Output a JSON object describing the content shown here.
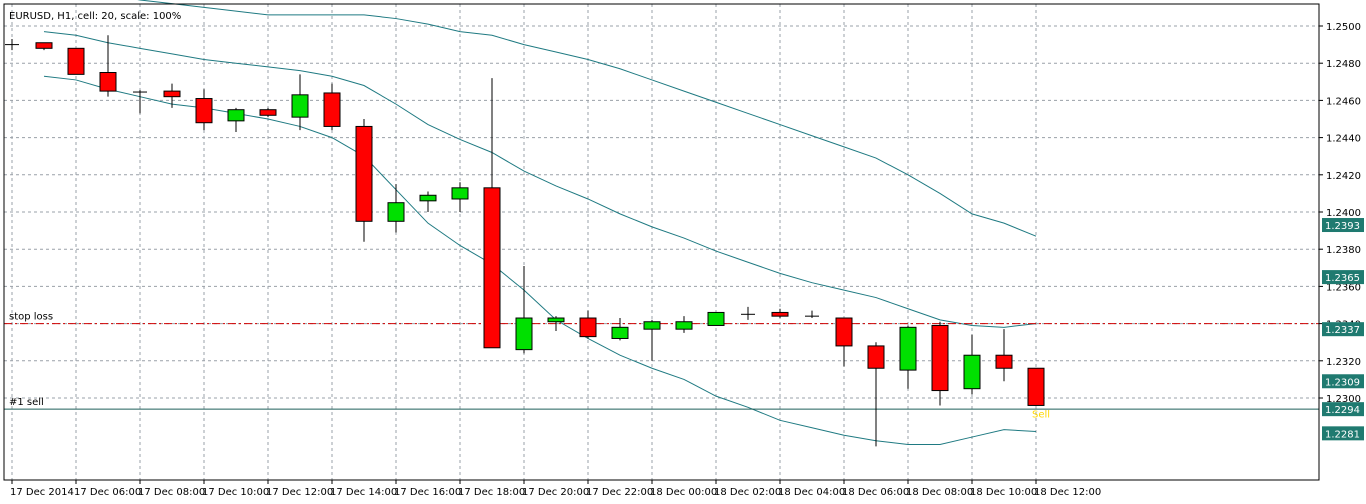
{
  "header": {
    "title": "EURUSD, H1, cell: 20, scale: 100%"
  },
  "colors": {
    "grid": "#9aa0a8",
    "frame": "#000000",
    "bull": "#00e000",
    "bear": "#ff0000",
    "band": "#1f7a82",
    "stop_line": "#d00000",
    "sell_line": "#1f5f5a",
    "price_bg": "#1f7a70",
    "marker": "#ffd700"
  },
  "chart_data": {
    "type": "candlestick",
    "symbol": "EURUSD",
    "timeframe": "H1",
    "ylim": [
      1.2266,
      1.2512
    ],
    "y_ticks": [
      "1.2500",
      "1.2480",
      "1.2460",
      "1.2440",
      "1.2420",
      "1.2400",
      "1.2380",
      "1.2360",
      "1.2340",
      "1.2320",
      "1.2300"
    ],
    "x_labels": [
      "17 Dec 2014",
      "17 Dec 06:00",
      "17 Dec 08:00",
      "17 Dec 10:00",
      "17 Dec 12:00",
      "17 Dec 14:00",
      "17 Dec 16:00",
      "17 Dec 18:00",
      "17 Dec 20:00",
      "17 Dec 22:00",
      "18 Dec 00:00",
      "18 Dec 02:00",
      "18 Dec 04:00",
      "18 Dec 06:00",
      "18 Dec 08:00",
      "18 Dec 10:00",
      "18 Dec 12:00"
    ],
    "candles": [
      {
        "o": 1.249,
        "h": 1.2493,
        "l": 1.2487,
        "c": 1.249
      },
      {
        "o": 1.2491,
        "h": 1.2491,
        "l": 1.2487,
        "c": 1.2488
      },
      {
        "o": 1.2488,
        "h": 1.2488,
        "l": 1.2474,
        "c": 1.2474
      },
      {
        "o": 1.2475,
        "h": 1.2495,
        "l": 1.2462,
        "c": 1.2465
      },
      {
        "o": 1.24645,
        "h": 1.24655,
        "l": 1.2453,
        "c": 1.24645
      },
      {
        "o": 1.2465,
        "h": 1.2469,
        "l": 1.2456,
        "c": 1.2462
      },
      {
        "o": 1.2461,
        "h": 1.2466,
        "l": 1.2444,
        "c": 1.2448
      },
      {
        "o": 1.2449,
        "h": 1.2456,
        "l": 1.2443,
        "c": 1.2455
      },
      {
        "o": 1.2455,
        "h": 1.2456,
        "l": 1.2451,
        "c": 1.2452
      },
      {
        "o": 1.2451,
        "h": 1.2474,
        "l": 1.2444,
        "c": 1.2463
      },
      {
        "o": 1.2464,
        "h": 1.2469,
        "l": 1.2444,
        "c": 1.2446
      },
      {
        "o": 1.2446,
        "h": 1.245,
        "l": 1.2384,
        "c": 1.2395
      },
      {
        "o": 1.2395,
        "h": 1.2415,
        "l": 1.2389,
        "c": 1.2405
      },
      {
        "o": 1.2406,
        "h": 1.2411,
        "l": 1.24,
        "c": 1.2409
      },
      {
        "o": 1.2407,
        "h": 1.2416,
        "l": 1.24,
        "c": 1.2413
      },
      {
        "o": 1.2413,
        "h": 1.2472,
        "l": 1.2327,
        "c": 1.2327
      },
      {
        "o": 1.2326,
        "h": 1.2371,
        "l": 1.2324,
        "c": 1.2343
      },
      {
        "o": 1.2341,
        "h": 1.2344,
        "l": 1.2336,
        "c": 1.2343
      },
      {
        "o": 1.2343,
        "h": 1.2347,
        "l": 1.2332,
        "c": 1.2333
      },
      {
        "o": 1.2332,
        "h": 1.2343,
        "l": 1.2331,
        "c": 1.2338
      },
      {
        "o": 1.2337,
        "h": 1.2342,
        "l": 1.232,
        "c": 1.2341
      },
      {
        "o": 1.2337,
        "h": 1.2344,
        "l": 1.2335,
        "c": 1.2341
      },
      {
        "o": 1.2339,
        "h": 1.2346,
        "l": 1.2339,
        "c": 1.2346
      },
      {
        "o": 1.2345,
        "h": 1.2349,
        "l": 1.2342,
        "c": 1.2345
      },
      {
        "o": 1.2346,
        "h": 1.2348,
        "l": 1.2343,
        "c": 1.2344
      },
      {
        "o": 1.2344,
        "h": 1.2347,
        "l": 1.2343,
        "c": 1.2344
      },
      {
        "o": 1.2343,
        "h": 1.2343,
        "l": 1.2317,
        "c": 1.2328
      },
      {
        "o": 1.2328,
        "h": 1.233,
        "l": 1.2274,
        "c": 1.2316
      },
      {
        "o": 1.2315,
        "h": 1.2339,
        "l": 1.2305,
        "c": 1.2338
      },
      {
        "o": 1.2339,
        "h": 1.2341,
        "l": 1.2296,
        "c": 1.2304
      },
      {
        "o": 1.2305,
        "h": 1.2334,
        "l": 1.2302,
        "c": 1.2323
      },
      {
        "o": 1.2323,
        "h": 1.2337,
        "l": 1.2309,
        "c": 1.2316
      },
      {
        "o": 1.2316,
        "h": 1.2316,
        "l": 1.2296,
        "c": 1.2296
      }
    ],
    "bands": {
      "upper": [
        1.2521,
        1.2519,
        1.2517,
        1.2514,
        1.2512,
        1.251,
        1.2508,
        1.2506,
        1.2506,
        1.2506,
        1.2506,
        1.2504,
        1.2501,
        1.2497,
        1.2495,
        1.249,
        1.2486,
        1.2482,
        1.2477,
        1.2471,
        1.2465,
        1.2459,
        1.2453,
        1.2447,
        1.2441,
        1.2435,
        1.2429,
        1.242,
        1.241,
        1.2399,
        1.2394,
        1.2387
      ],
      "middle": [
        1.2497,
        1.2495,
        1.2491,
        1.2488,
        1.2485,
        1.2482,
        1.248,
        1.2478,
        1.2476,
        1.2473,
        1.2468,
        1.2458,
        1.2447,
        1.2439,
        1.2432,
        1.2422,
        1.2414,
        1.2407,
        1.2399,
        1.2392,
        1.2386,
        1.2379,
        1.2373,
        1.2367,
        1.2362,
        1.2358,
        1.2354,
        1.2348,
        1.2342,
        1.2339,
        1.2338,
        1.234
      ],
      "lower": [
        1.2473,
        1.2471,
        1.2466,
        1.2462,
        1.2458,
        1.2456,
        1.2453,
        1.245,
        1.2446,
        1.244,
        1.243,
        1.2412,
        1.2394,
        1.2382,
        1.2372,
        1.2358,
        1.2342,
        1.2332,
        1.2323,
        1.2316,
        1.231,
        1.2301,
        1.2295,
        1.2288,
        1.2284,
        1.228,
        1.2277,
        1.2275,
        1.2275,
        1.2279,
        1.2283,
        1.2282
      ]
    },
    "levels": [
      {
        "label": "stop loss",
        "price": 1.234,
        "style": "dashdot"
      },
      {
        "label": "#1 sell",
        "price": 1.2294,
        "style": "solid"
      }
    ],
    "price_labels": [
      {
        "text": "1.2393",
        "price": 1.2393
      },
      {
        "text": "1.2365",
        "price": 1.2365
      },
      {
        "text": "1.2337",
        "price": 1.2337
      },
      {
        "text": "1.2309",
        "price": 1.2309
      },
      {
        "text": "1.2294",
        "price": 1.2294
      },
      {
        "text": "1.2281",
        "price": 1.2281
      }
    ],
    "marker": {
      "text": "Sell",
      "candle_index": 32
    }
  }
}
